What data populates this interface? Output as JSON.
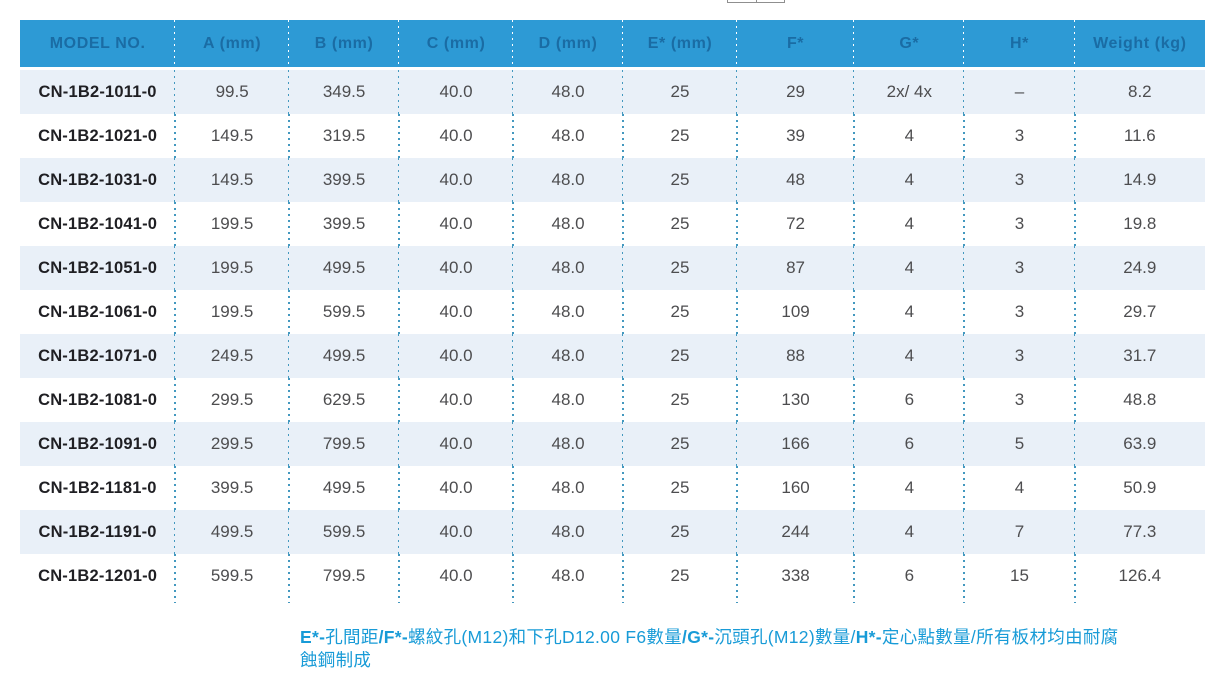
{
  "colors": {
    "header_bg": "#2d9ad5",
    "header_text": "#1a6ca4",
    "row_alt_bg": "#e9f0f8",
    "body_dot": "#4398bf",
    "model_text": "#1f1f23",
    "cell_text": "#4d4d4f",
    "footnote_text": "#189bd7"
  },
  "table": {
    "columns": [
      "MODEL NO.",
      "A (mm)",
      "B (mm)",
      "C (mm)",
      "D (mm)",
      "E* (mm)",
      "F*",
      "G*",
      "H*",
      "Weight (kg)"
    ],
    "rows": [
      [
        "CN-1B2-1011-0",
        "99.5",
        "349.5",
        "40.0",
        "48.0",
        "25",
        "29",
        "2x/ 4x",
        "–",
        "8.2"
      ],
      [
        "CN-1B2-1021-0",
        "149.5",
        "319.5",
        "40.0",
        "48.0",
        "25",
        "39",
        "4",
        "3",
        "11.6"
      ],
      [
        "CN-1B2-1031-0",
        "149.5",
        "399.5",
        "40.0",
        "48.0",
        "25",
        "48",
        "4",
        "3",
        "14.9"
      ],
      [
        "CN-1B2-1041-0",
        "199.5",
        "399.5",
        "40.0",
        "48.0",
        "25",
        "72",
        "4",
        "3",
        "19.8"
      ],
      [
        "CN-1B2-1051-0",
        "199.5",
        "499.5",
        "40.0",
        "48.0",
        "25",
        "87",
        "4",
        "3",
        "24.9"
      ],
      [
        "CN-1B2-1061-0",
        "199.5",
        "599.5",
        "40.0",
        "48.0",
        "25",
        "109",
        "4",
        "3",
        "29.7"
      ],
      [
        "CN-1B2-1071-0",
        "249.5",
        "499.5",
        "40.0",
        "48.0",
        "25",
        "88",
        "4",
        "3",
        "31.7"
      ],
      [
        "CN-1B2-1081-0",
        "299.5",
        "629.5",
        "40.0",
        "48.0",
        "25",
        "130",
        "6",
        "3",
        "48.8"
      ],
      [
        "CN-1B2-1091-0",
        "299.5",
        "799.5",
        "40.0",
        "48.0",
        "25",
        "166",
        "6",
        "5",
        "63.9"
      ],
      [
        "CN-1B2-1181-0",
        "399.5",
        "499.5",
        "40.0",
        "48.0",
        "25",
        "160",
        "4",
        "4",
        "50.9"
      ],
      [
        "CN-1B2-1191-0",
        "499.5",
        "599.5",
        "40.0",
        "48.0",
        "25",
        "244",
        "4",
        "7",
        "77.3"
      ],
      [
        "CN-1B2-1201-0",
        "599.5",
        "799.5",
        "40.0",
        "48.0",
        "25",
        "338",
        "6",
        "15",
        "126.4"
      ]
    ]
  },
  "footnote": {
    "segments": [
      {
        "text": "E*-",
        "bold": true
      },
      {
        "text": "孔間距",
        "bold": false
      },
      {
        "text": "/F*-",
        "bold": true
      },
      {
        "text": "螺紋孔(M12)和下孔D12.00 F6數量",
        "bold": false
      },
      {
        "text": "/G*-",
        "bold": true
      },
      {
        "text": "沉頭孔(M12)數量",
        "bold": false
      },
      {
        "text": "/",
        "bold": false
      },
      {
        "text": "H*-",
        "bold": true
      },
      {
        "text": "定心點數量/所有板材均由耐腐蝕鋼制成",
        "bold": false
      }
    ]
  }
}
